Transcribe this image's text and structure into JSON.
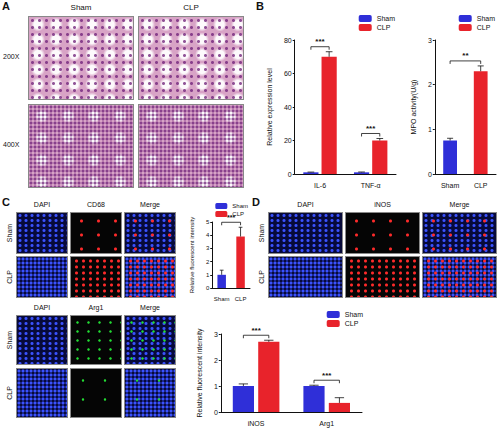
{
  "figure": {
    "A": {
      "label": "A",
      "columns": [
        "Sham",
        "CLP"
      ],
      "rows": [
        "200X",
        "400X"
      ]
    },
    "B": {
      "label": "B"
    },
    "C": {
      "label": "C",
      "columns": [
        "DAPI",
        "CD68",
        "Merge"
      ],
      "rows": [
        "Sham",
        "CLP"
      ]
    },
    "D": {
      "label": "D",
      "columns": [
        "DAPI",
        "iNOS",
        "Merge"
      ],
      "rows": [
        "Sham",
        "CLP"
      ]
    },
    "D_Arg1": {
      "columns": [
        "DAPI",
        "Arg1",
        "Merge"
      ],
      "rows": [
        "Sham",
        "CLP"
      ]
    }
  },
  "chart_data": [
    {
      "type": "bar",
      "ylabel": "Relative expression level",
      "categories": [
        "IL-6",
        "TNF-α"
      ],
      "series": [
        {
          "name": "Sham",
          "color": "#2f2fd8",
          "values": [
            1,
            1
          ],
          "errors": [
            0.15,
            0.2
          ]
        },
        {
          "name": "CLP",
          "color": "#e8232b",
          "values": [
            70,
            20
          ],
          "errors": [
            3,
            1.2
          ]
        }
      ],
      "ylim": [
        0,
        80
      ],
      "yticks": [
        0,
        20,
        40,
        60,
        80
      ],
      "grid": false,
      "legend": "upper right",
      "annotations": [
        {
          "text": "***",
          "category": "IL-6"
        },
        {
          "text": "***",
          "category": "TNF-α"
        }
      ]
    },
    {
      "type": "bar",
      "ylabel": "MPO activity(U/g)",
      "categories": [
        "Sham",
        "CLP"
      ],
      "series": [
        {
          "name": "Sham",
          "color": "#2f2fd8",
          "values": [
            0.75,
            null
          ],
          "errors": [
            0.05,
            null
          ]
        },
        {
          "name": "CLP",
          "color": "#e8232b",
          "values": [
            null,
            2.3
          ],
          "errors": [
            null,
            0.12
          ]
        }
      ],
      "ylim": [
        0,
        3
      ],
      "yticks": [
        0,
        1,
        2,
        3
      ],
      "grid": false,
      "legend": "upper right",
      "annotations": [
        {
          "text": "**",
          "categories": [
            "Sham",
            "CLP"
          ]
        }
      ]
    },
    {
      "type": "bar",
      "ylabel": "Relative fluorescent intensity",
      "categories": [
        "Sham",
        "CLP"
      ],
      "series": [
        {
          "name": "Sham",
          "color": "#2f2fd8",
          "values": [
            1,
            null
          ],
          "errors": [
            0.35,
            null
          ]
        },
        {
          "name": "CLP",
          "color": "#e8232b",
          "values": [
            null,
            3.9
          ],
          "errors": [
            null,
            0.7
          ]
        }
      ],
      "ylim": [
        0,
        5
      ],
      "yticks": [
        0,
        1,
        2,
        3,
        4,
        5
      ],
      "grid": false,
      "legend": "upper right",
      "annotations": [
        {
          "text": "***",
          "categories": [
            "Sham",
            "CLP"
          ]
        }
      ]
    },
    {
      "type": "bar",
      "ylabel": "Relative fluorescent intensity",
      "categories": [
        "iNOS",
        "Arg1"
      ],
      "series": [
        {
          "name": "Sham",
          "color": "#2f2fd8",
          "values": [
            1,
            1
          ],
          "errors": [
            0.08,
            0.03
          ]
        },
        {
          "name": "CLP",
          "color": "#e8232b",
          "values": [
            2.7,
            0.35
          ],
          "errors": [
            0.06,
            0.2
          ]
        }
      ],
      "ylim": [
        0,
        3
      ],
      "yticks": [
        0,
        1,
        2,
        3
      ],
      "grid": false,
      "legend": "upper right",
      "annotations": [
        {
          "text": "***",
          "category": "iNOS"
        },
        {
          "text": "***",
          "category": "Arg1"
        }
      ]
    }
  ]
}
